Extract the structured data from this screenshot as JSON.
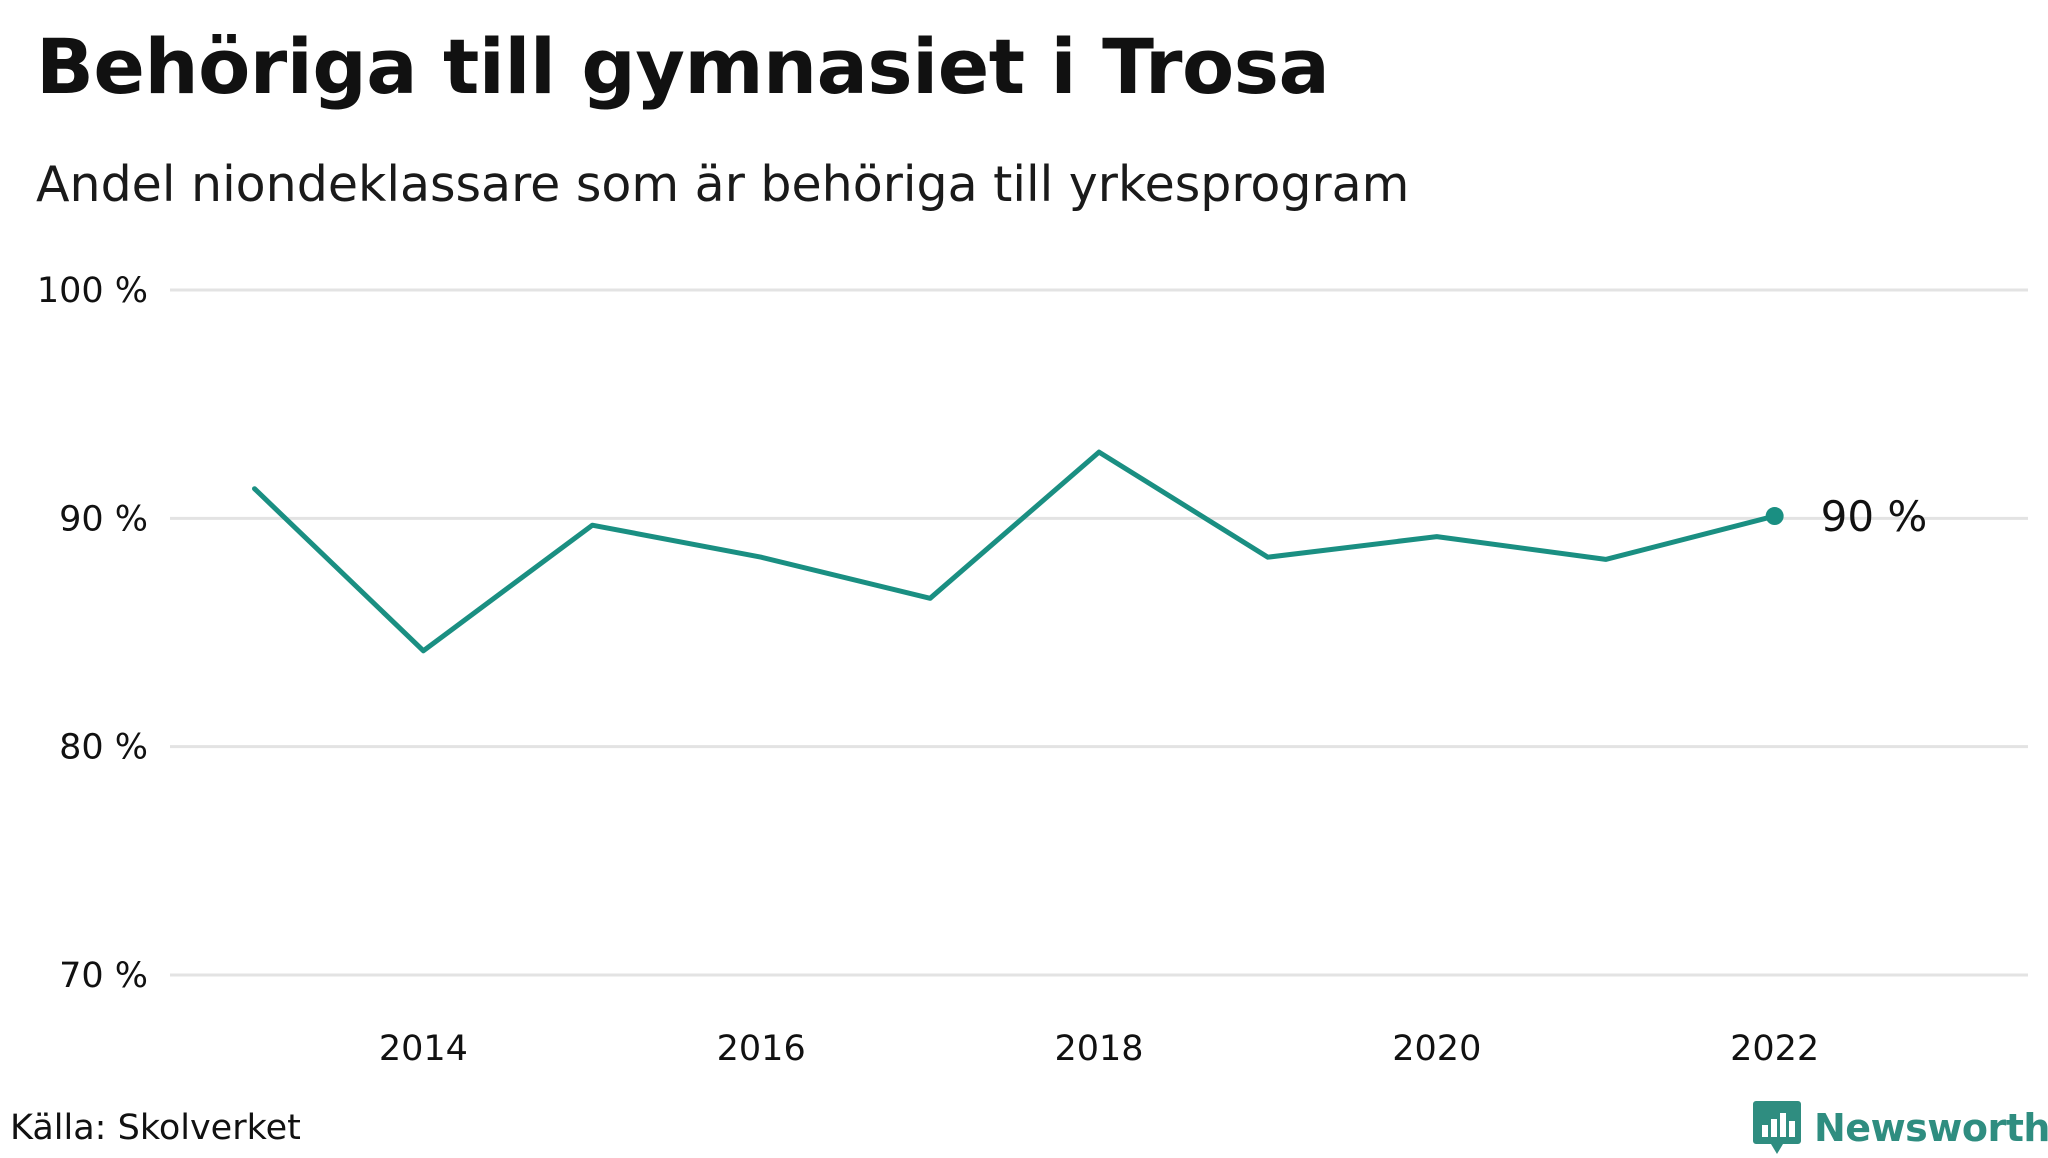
{
  "header": {
    "title": "Behöriga till gymnasiet i Trosa",
    "subtitle": "Andel niondeklassare som är behöriga till yrkesprogram"
  },
  "footer": {
    "source": "Källa: Skolverket",
    "brand": "Newsworthy"
  },
  "colors": {
    "line": "#1a8f82",
    "brand": "#2f8d80",
    "grid": "#e3e3e3"
  },
  "icons": {
    "brand_logo": "bar-chart-speech-bubble-icon"
  },
  "chart_data": {
    "type": "line",
    "title": "Behöriga till gymnasiet i Trosa",
    "subtitle": "Andel niondeklassare som är behöriga till yrkesprogram",
    "xlabel": "",
    "ylabel": "",
    "x": [
      2013,
      2014,
      2015,
      2016,
      2017,
      2018,
      2019,
      2020,
      2021,
      2022
    ],
    "series": [
      {
        "values": [
          91.3,
          84.2,
          89.7,
          88.3,
          86.5,
          92.9,
          88.3,
          89.2,
          88.2,
          90.1
        ]
      }
    ],
    "xlim": [
      2012.5,
      2023.5
    ],
    "ylim": [
      70,
      100
    ],
    "y_ticks": [
      70,
      80,
      90,
      100
    ],
    "y_tick_labels": [
      "70 %",
      "80 %",
      "90 %",
      "100 %"
    ],
    "x_ticks": [
      2014,
      2016,
      2018,
      2020,
      2022
    ],
    "x_tick_labels": [
      "2014",
      "2016",
      "2018",
      "2020",
      "2022"
    ],
    "grid": true,
    "legend": "none",
    "end_label": "90 %"
  }
}
